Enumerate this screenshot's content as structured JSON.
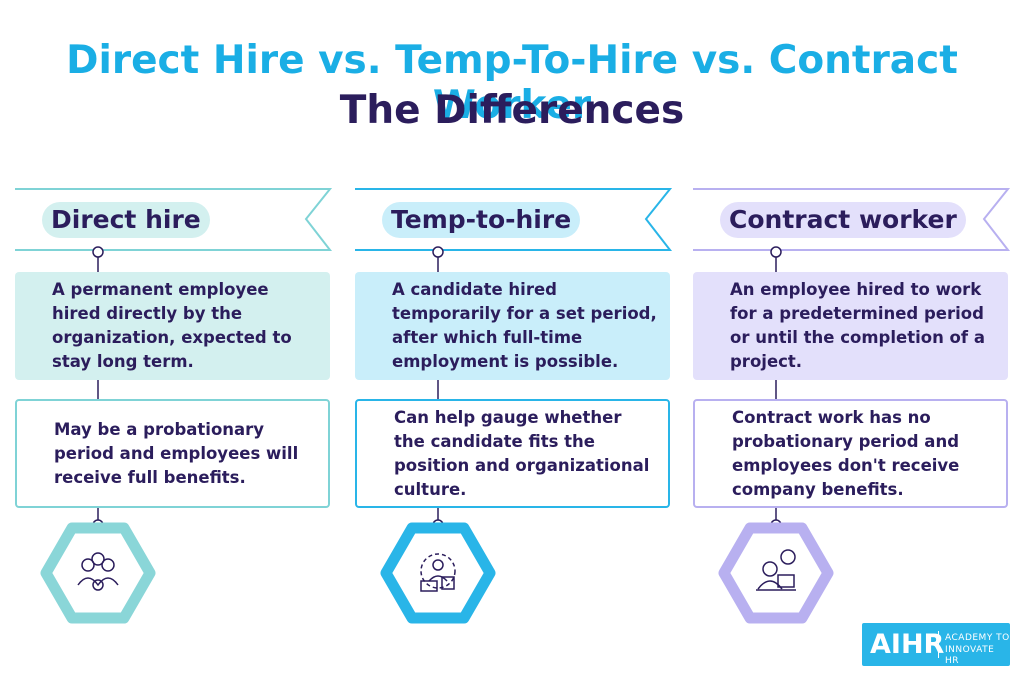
{
  "header": {
    "title": "Direct Hire vs. Temp-To-Hire vs. Contract Worker",
    "subtitle": "The Differences"
  },
  "columns": [
    {
      "heading": "Direct hire",
      "description": "A permanent employee hired directly by the organization, expected to stay long term.",
      "note": "May be a probationary period and employees will receive full benefits."
    },
    {
      "heading": "Temp-to-hire",
      "description": "A candidate hired temporarily for a set period, after which full-time employment is possible.",
      "note": "Can help gauge whether the candidate fits the position and organizational culture."
    },
    {
      "heading": "Contract worker",
      "description": "An employee hired to work for a predetermined period or until the completion of a project.",
      "note": "Contract work has no probationary period and employees don't receive company benefits."
    }
  ],
  "logo": {
    "name": "AIHR",
    "tagline_1": "ACADEMY TO",
    "tagline_2": "INNOVATE HR"
  }
}
